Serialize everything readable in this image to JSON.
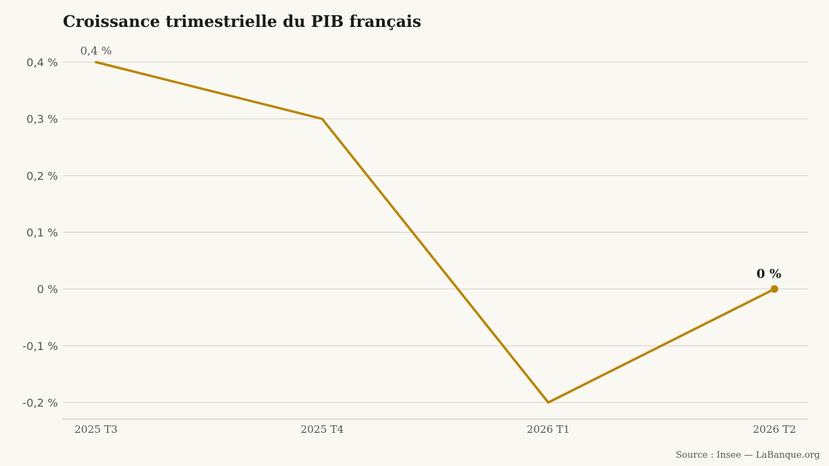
{
  "chart_data": {
    "type": "line",
    "title": "Croissance trimestrielle du PIB français",
    "xlabel": "",
    "ylabel": "",
    "categories": [
      "2025 T3",
      "2025 T4",
      "2026 T1",
      "2026 T2"
    ],
    "series": [
      {
        "values": [
          0.4,
          0.3,
          -0.2,
          0.0
        ],
        "color": "#b8860b"
      }
    ],
    "ylim": [
      -0.2,
      0.4
    ],
    "yticks": [
      0.4,
      0.3,
      0.2,
      0.1,
      0,
      -0.1,
      -0.2
    ],
    "ytick_labels": [
      "0,4 %",
      "0,3 %",
      "0,2 %",
      "0,1 %",
      "0 %",
      "-0,1 %",
      "-0,2 %"
    ],
    "annotations": [
      {
        "index": 0,
        "text": "0,4 %"
      },
      {
        "index": 3,
        "text": "0 %"
      }
    ],
    "grid": true,
    "grid_color": "#d8cfc6",
    "source": "Source : Insee — LaBanque.org"
  }
}
